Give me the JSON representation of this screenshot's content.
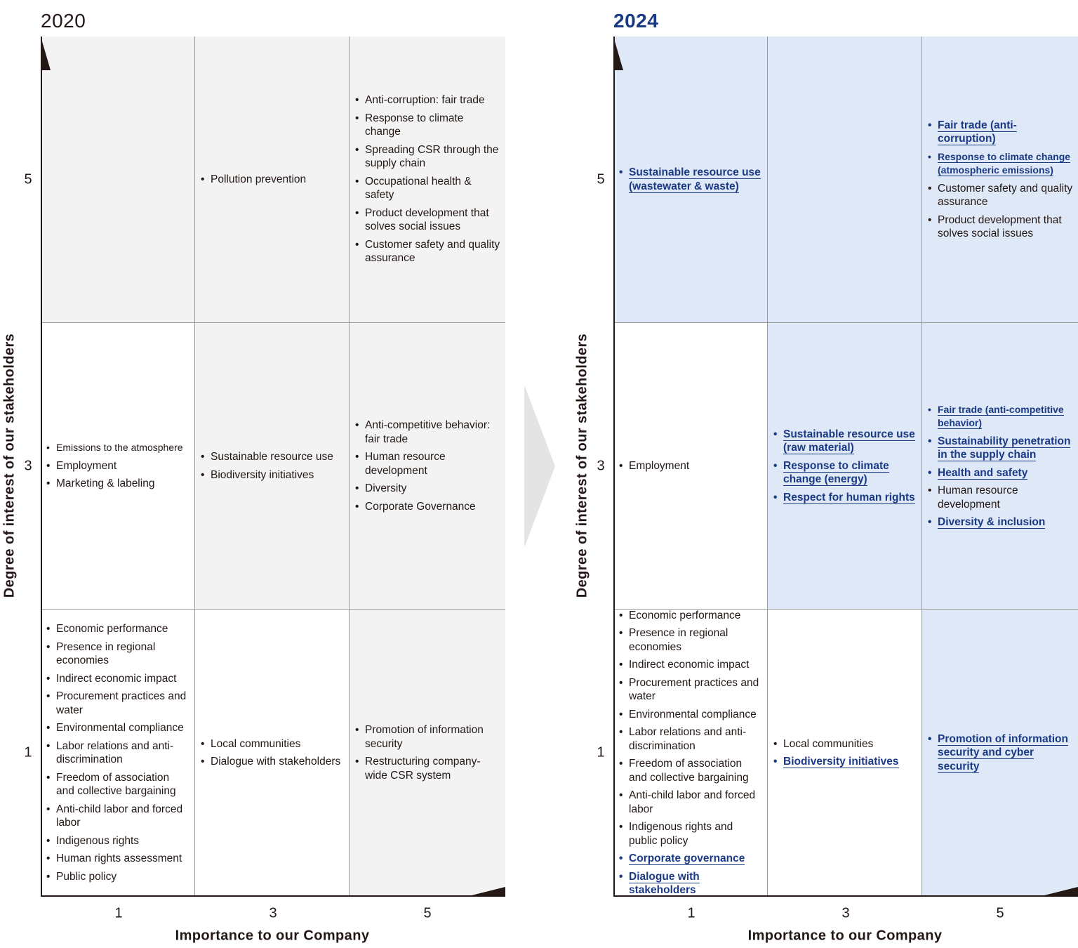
{
  "left": {
    "year": "2020",
    "ylabel": "Degree of interest of our stakeholders",
    "xlabel": "Importance to our Company",
    "yticks": [
      "5",
      "3",
      "1"
    ],
    "xticks": [
      "1",
      "3",
      "5"
    ],
    "cells": [
      [
        {
          "items": []
        },
        {
          "items": [
            {
              "text": "Pollution prevention"
            }
          ]
        },
        {
          "items": [
            {
              "text": "Anti-corruption: fair trade"
            },
            {
              "text": "Response to climate change"
            },
            {
              "text": "Spreading CSR through the supply chain"
            },
            {
              "text": "Occupational health & safety"
            },
            {
              "text": "Product development that solves social issues"
            },
            {
              "text": "Customer safety and quality assurance"
            }
          ]
        }
      ],
      [
        {
          "items": [
            {
              "text": "Emissions to the atmosphere",
              "small": true
            },
            {
              "text": "Employment"
            },
            {
              "text": "Marketing & labeling"
            }
          ]
        },
        {
          "items": [
            {
              "text": "Sustainable resource use"
            },
            {
              "text": "Biodiversity initiatives"
            }
          ]
        },
        {
          "items": [
            {
              "text": "Anti-competitive behavior: fair trade"
            },
            {
              "text": "Human resource development"
            },
            {
              "text": "Diversity"
            },
            {
              "text": "Corporate Governance"
            }
          ]
        }
      ],
      [
        {
          "items": [
            {
              "text": "Economic performance"
            },
            {
              "text": "Presence in regional economies"
            },
            {
              "text": "Indirect economic impact"
            },
            {
              "text": "Procurement practices and water"
            },
            {
              "text": "Environmental compliance"
            },
            {
              "text": "Labor relations and anti-discrimination"
            },
            {
              "text": "Freedom of association and collective bargaining"
            },
            {
              "text": "Anti-child labor and forced labor"
            },
            {
              "text": "Indigenous rights"
            },
            {
              "text": "Human rights assessment"
            },
            {
              "text": "Public policy"
            }
          ]
        },
        {
          "items": [
            {
              "text": "Local communities"
            },
            {
              "text": "Dialogue with stakeholders"
            }
          ]
        },
        {
          "items": [
            {
              "text": "Promotion of information security"
            },
            {
              "text": "Restructuring company-wide CSR system"
            }
          ]
        }
      ]
    ]
  },
  "right": {
    "year": "2024",
    "ylabel": "Degree of interest of our stakeholders",
    "xlabel": "Importance to our Company",
    "yticks": [
      "5",
      "3",
      "1"
    ],
    "xticks": [
      "1",
      "3",
      "5"
    ],
    "cells": [
      [
        {
          "items": [
            {
              "text": "Sustainable resource use (wastewater & waste)",
              "hl": true
            }
          ]
        },
        {
          "items": []
        },
        {
          "items": [
            {
              "text": "Fair trade (anti-corruption)",
              "hl": true
            },
            {
              "text": "Response to climate change (atmospheric emissions)",
              "hl": true,
              "narrow": true
            },
            {
              "text": "Customer safety and quality assurance"
            },
            {
              "text": "Product development that solves social issues"
            }
          ]
        }
      ],
      [
        {
          "items": [
            {
              "text": "Employment"
            }
          ]
        },
        {
          "items": [
            {
              "text": "Sustainable resource use (raw material)",
              "hl": true
            },
            {
              "text": "Response to climate change (energy)",
              "hl": true
            },
            {
              "text": "Respect for human rights",
              "hl": true
            }
          ]
        },
        {
          "items": [
            {
              "text": "Fair trade (anti-competitive behavior)",
              "hl": true,
              "narrow": true
            },
            {
              "text": "Sustainability penetration in the supply chain",
              "hl": true
            },
            {
              "text": "Health and safety",
              "hl": true
            },
            {
              "text": "Human resource development"
            },
            {
              "text": "Diversity & inclusion",
              "hl": true
            }
          ]
        }
      ],
      [
        {
          "items": [
            {
              "text": "Economic performance"
            },
            {
              "text": "Presence in regional economies"
            },
            {
              "text": "Indirect economic impact"
            },
            {
              "text": "Procurement practices and water"
            },
            {
              "text": "Environmental compliance"
            },
            {
              "text": "Labor relations and anti-discrimination"
            },
            {
              "text": "Freedom of association and collective bargaining"
            },
            {
              "text": "Anti-child labor and forced labor"
            },
            {
              "text": "Indigenous rights and public policy"
            },
            {
              "text": "Corporate governance",
              "hl": true
            },
            {
              "text": "Dialogue with stakeholders",
              "hl": true
            }
          ]
        },
        {
          "items": [
            {
              "text": "Local communities"
            },
            {
              "text": "Biodiversity initiatives",
              "hl": true
            }
          ]
        },
        {
          "items": [
            {
              "text": "Promotion of information security and cyber security",
              "hl": true
            }
          ]
        }
      ]
    ]
  },
  "colors": {
    "left_shade": "#f2f3f2",
    "right_shade": "#dfe8f6",
    "highlight": "#1a3a85",
    "axis": "#231815"
  }
}
